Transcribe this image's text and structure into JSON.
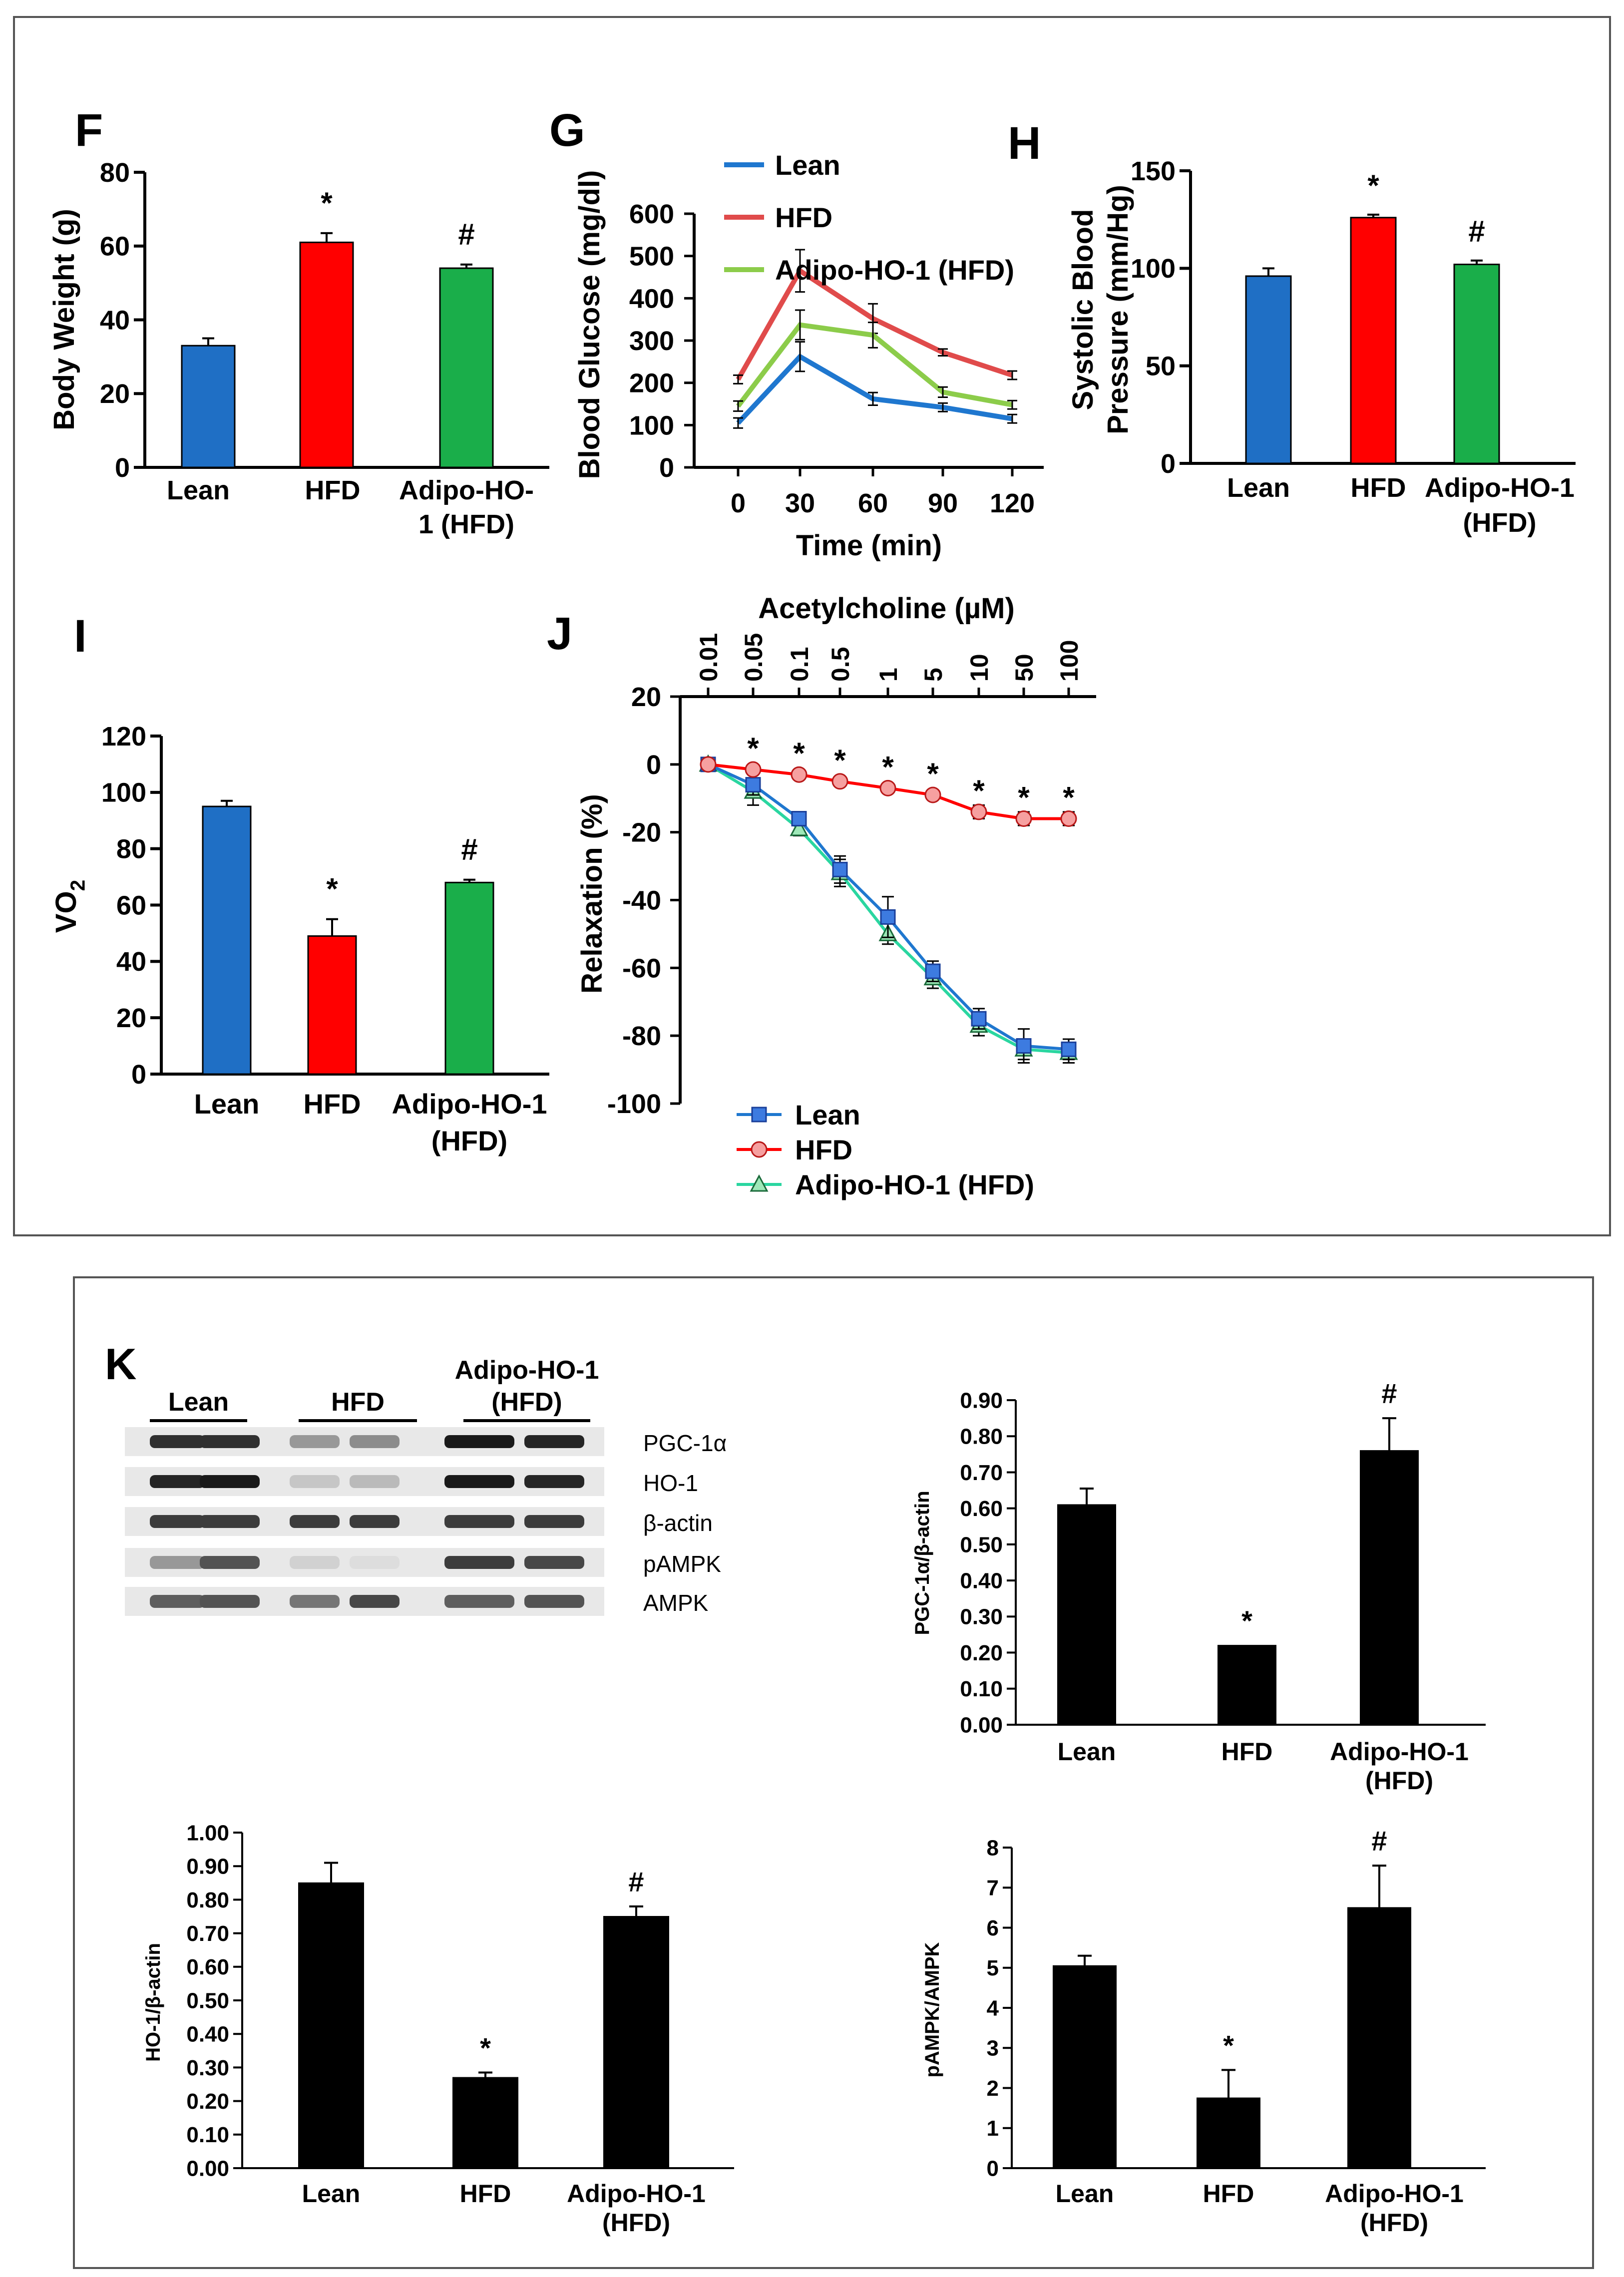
{
  "colors": {
    "blue": "#1f6fc5",
    "red": "#ff0000",
    "green": "#1aae4a",
    "black": "#000000",
    "lineGreen": "#8ccc4a",
    "lineRed": "#e04b4b",
    "lineBlue": "#1f77cf"
  },
  "chart_data": [
    {
      "id": "F",
      "type": "bar",
      "panel_label": "F",
      "ylabel": "Body Weight (g)",
      "ylim": [
        0,
        80
      ],
      "yticks": [
        0,
        20,
        40,
        60,
        80
      ],
      "categories": [
        "Lean",
        "HFD",
        "Adipo-HO-1 (HFD)"
      ],
      "category_lines": [
        [
          "Lean"
        ],
        [
          "HFD"
        ],
        [
          "Adipo-HO-",
          "1 (HFD)"
        ]
      ],
      "values": [
        33,
        61,
        54
      ],
      "errors": [
        2,
        2.5,
        1
      ],
      "markers": [
        "",
        "*",
        "#"
      ],
      "bar_colors": [
        "#1f6fc5",
        "#ff0000",
        "#1aae4a"
      ]
    },
    {
      "id": "G",
      "type": "line",
      "panel_label": "G",
      "ylabel": "Blood Glucose (mg/dl)",
      "xlabel": "Time (min)",
      "x": [
        0,
        30,
        60,
        90,
        120
      ],
      "ylim": [
        0,
        600
      ],
      "yticks": [
        0,
        100,
        200,
        300,
        400,
        500,
        600
      ],
      "series": [
        {
          "name": "Lean",
          "values": [
            105,
            262,
            162,
            142,
            115
          ],
          "errors": [
            12,
            35,
            15,
            10,
            10
          ],
          "color": "#1f77cf"
        },
        {
          "name": "HFD",
          "values": [
            208,
            465,
            352,
            272,
            218
          ],
          "errors": [
            10,
            50,
            35,
            8,
            10
          ],
          "color": "#e04b4b"
        },
        {
          "name": "Adipo-HO-1 (HFD)",
          "values": [
            145,
            337,
            313,
            178,
            148
          ],
          "errors": [
            12,
            35,
            30,
            12,
            10
          ],
          "color": "#8ccc4a"
        }
      ]
    },
    {
      "id": "H",
      "type": "bar",
      "panel_label": "H",
      "ylabel_lines": [
        "Systolic Blood",
        "Pressure (mm/Hg)"
      ],
      "ylim": [
        0,
        150
      ],
      "yticks": [
        0,
        50,
        100,
        150
      ],
      "categories": [
        "Lean",
        "HFD",
        "Adipo-HO-1 (HFD)"
      ],
      "category_lines": [
        [
          "Lean"
        ],
        [
          "HFD"
        ],
        [
          "Adipo-HO-1",
          "(HFD)"
        ]
      ],
      "values": [
        96,
        126,
        102
      ],
      "errors": [
        4,
        1.5,
        2
      ],
      "markers": [
        "",
        "*",
        "#"
      ],
      "bar_colors": [
        "#1f6fc5",
        "#ff0000",
        "#1aae4a"
      ]
    },
    {
      "id": "I",
      "type": "bar",
      "panel_label": "I",
      "ylabel": "VO",
      "ylabel_sub": "2",
      "ylim": [
        0,
        120
      ],
      "yticks": [
        0,
        20,
        40,
        60,
        80,
        100,
        120
      ],
      "categories": [
        "Lean",
        "HFD",
        "Adipo-HO-1 (HFD)"
      ],
      "category_lines": [
        [
          "Lean"
        ],
        [
          "HFD"
        ],
        [
          "Adipo-HO-1",
          "(HFD)"
        ]
      ],
      "values": [
        95,
        49,
        68
      ],
      "errors": [
        2,
        6,
        1
      ],
      "markers": [
        "",
        "*",
        "#"
      ],
      "bar_colors": [
        "#1f6fc5",
        "#ff0000",
        "#1aae4a"
      ]
    },
    {
      "id": "J",
      "type": "line",
      "panel_label": "J",
      "ylabel": "Relaxation (%)",
      "top_label": "Acetylcholine (µM)",
      "x": [
        "0.01",
        "0.05",
        "0.1",
        "0.5",
        "1",
        "5",
        "10",
        "50",
        "100"
      ],
      "ylim": [
        -100,
        20
      ],
      "yticks": [
        -100,
        -80,
        -60,
        -40,
        -20,
        0,
        20
      ],
      "markers": [
        "",
        "*",
        "*",
        "*",
        "*",
        "*",
        "*",
        "*",
        "*"
      ],
      "series": [
        {
          "name": "Lean",
          "values": [
            0,
            -6,
            -16,
            -31,
            -45,
            -61,
            -75,
            -83,
            -84
          ],
          "errors": [
            1,
            3,
            2,
            4,
            6,
            3,
            3,
            5,
            3
          ],
          "color": "#1f77cf",
          "marker": "square"
        },
        {
          "name": "HFD",
          "values": [
            0,
            -1.5,
            -3,
            -5,
            -7,
            -9,
            -14,
            -16,
            -16
          ],
          "errors": [
            1,
            1,
            1,
            1,
            1,
            1,
            2,
            2,
            2
          ],
          "color": "#ff0000",
          "marker": "circle"
        },
        {
          "name": "Adipo-HO-1 (HFD)",
          "values": [
            0,
            -8,
            -19,
            -32,
            -50,
            -63,
            -77,
            -84,
            -85
          ],
          "errors": [
            1,
            4,
            2,
            4,
            3,
            3,
            3,
            3,
            3
          ],
          "color": "#2ad6a0",
          "marker": "triangle"
        }
      ]
    },
    {
      "id": "K1",
      "type": "bar",
      "ylabel": "PGC-1α/β-actin",
      "ylim": [
        0,
        0.9
      ],
      "yticks": [
        "0.00",
        "0.10",
        "0.20",
        "0.30",
        "0.40",
        "0.50",
        "0.60",
        "0.70",
        "0.80",
        "0.90"
      ],
      "categories": [
        "Lean",
        "HFD",
        "Adipo-HO-1 (HFD)"
      ],
      "category_lines": [
        [
          "Lean"
        ],
        [
          "HFD"
        ],
        [
          "Adipo-HO-1",
          "(HFD)"
        ]
      ],
      "values": [
        0.61,
        0.22,
        0.76
      ],
      "errors": [
        0.045,
        0,
        0.09
      ],
      "markers": [
        "",
        "*",
        "#"
      ],
      "bar_colors": [
        "#000000",
        "#000000",
        "#000000"
      ]
    },
    {
      "id": "K2",
      "type": "bar",
      "ylabel": "HO-1/β-actin",
      "ylim": [
        0,
        1.0
      ],
      "yticks": [
        "0.00",
        "0.10",
        "0.20",
        "0.30",
        "0.40",
        "0.50",
        "0.60",
        "0.70",
        "0.80",
        "0.90",
        "1.00"
      ],
      "categories": [
        "Lean",
        "HFD",
        "Adipo-HO-1 (HFD)"
      ],
      "category_lines": [
        [
          "Lean"
        ],
        [
          "HFD"
        ],
        [
          "Adipo-HO-1",
          "(HFD)"
        ]
      ],
      "values": [
        0.85,
        0.27,
        0.75
      ],
      "errors": [
        0.06,
        0.015,
        0.03
      ],
      "markers": [
        "",
        "*",
        "#"
      ],
      "bar_colors": [
        "#000000",
        "#000000",
        "#000000"
      ]
    },
    {
      "id": "K3",
      "type": "bar",
      "ylabel": "pAMPK/AMPK",
      "ylim": [
        0,
        8
      ],
      "yticks": [
        "0",
        "1",
        "2",
        "3",
        "4",
        "5",
        "6",
        "7",
        "8"
      ],
      "categories": [
        "Lean",
        "HFD",
        "Adipo-HO-1 (HFD)"
      ],
      "category_lines": [
        [
          "Lean"
        ],
        [
          "HFD"
        ],
        [
          "Adipo-HO-1",
          "(HFD)"
        ]
      ],
      "values": [
        5.05,
        1.75,
        6.5
      ],
      "errors": [
        0.25,
        0.7,
        1.05
      ],
      "markers": [
        "",
        "*",
        "#"
      ],
      "bar_colors": [
        "#000000",
        "#000000",
        "#000000"
      ]
    }
  ],
  "western_blot": {
    "panel_label": "K",
    "groups": [
      {
        "lines": [
          "Lean"
        ]
      },
      {
        "lines": [
          "HFD"
        ]
      },
      {
        "lines": [
          "Adipo-HO-1",
          "(HFD)"
        ]
      }
    ],
    "bands": [
      "PGC-1α",
      "HO-1",
      "β-actin",
      "pAMPK",
      "AMPK"
    ],
    "intensities": [
      [
        0.9,
        0.9,
        0.45,
        0.5,
        1.0,
        0.95
      ],
      [
        0.95,
        1.0,
        0.25,
        0.3,
        1.0,
        0.95
      ],
      [
        0.85,
        0.85,
        0.85,
        0.85,
        0.85,
        0.85
      ],
      [
        0.45,
        0.75,
        0.2,
        0.15,
        0.85,
        0.8
      ],
      [
        0.7,
        0.75,
        0.6,
        0.8,
        0.7,
        0.75
      ]
    ]
  }
}
